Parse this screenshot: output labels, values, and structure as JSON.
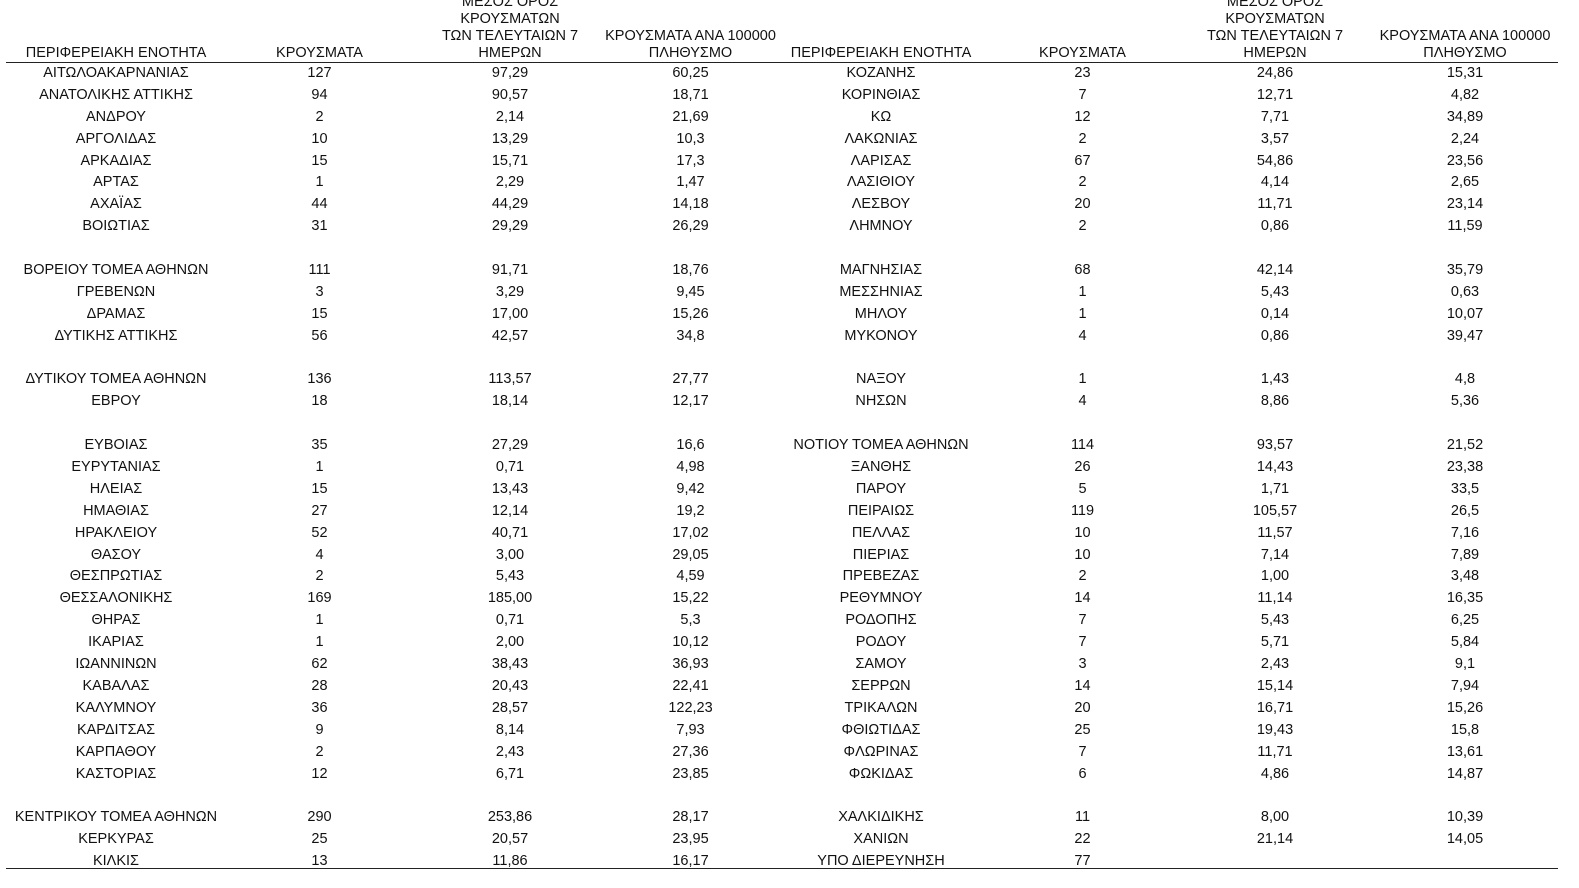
{
  "headers": [
    [
      "ΠΕΡΙΦΕΡΕΙΑΚΗ ΕΝΟΤΗΤΑ"
    ],
    [
      "ΚΡΟΥΣΜΑΤΑ"
    ],
    [
      "ΜΕΣΟΣ ΟΡΟΣ ΚΡΟΥΣΜΑΤΩΝ",
      "ΤΩΝ ΤΕΛΕΥΤΑΙΩΝ 7",
      "ΗΜΕΡΩΝ"
    ],
    [
      "ΚΡΟΥΣΜΑΤΑ ΑΝΑ 100000",
      "ΠΛΗΘΥΣΜΟ"
    ],
    [
      "ΠΕΡΙΦΕΡΕΙΑΚΗ ΕΝΟΤΗΤΑ"
    ],
    [
      "ΚΡΟΥΣΜΑΤΑ"
    ],
    [
      "ΜΕΣΟΣ ΟΡΟΣ ΚΡΟΥΣΜΑΤΩΝ",
      "ΤΩΝ ΤΕΛΕΥΤΑΙΩΝ 7",
      "ΗΜΕΡΩΝ"
    ],
    [
      "ΚΡΟΥΣΜΑΤΑ ΑΝΑ 100000",
      "ΠΛΗΘΥΣΜΟ"
    ]
  ],
  "rows": [
    [
      "ΑΙΤΩΛΟΑΚΑΡΝΑΝΙΑΣ",
      "127",
      "97,29",
      "60,25",
      "ΚΟΖΑΝΗΣ",
      "23",
      "24,86",
      "15,31"
    ],
    [
      "ΑΝΑΤΟΛΙΚΗΣ ΑΤΤΙΚΗΣ",
      "94",
      "90,57",
      "18,71",
      "ΚΟΡΙΝΘΙΑΣ",
      "7",
      "12,71",
      "4,82"
    ],
    [
      "ΑΝΔΡΟΥ",
      "2",
      "2,14",
      "21,69",
      "ΚΩ",
      "12",
      "7,71",
      "34,89"
    ],
    [
      "ΑΡΓΟΛΙΔΑΣ",
      "10",
      "13,29",
      "10,3",
      "ΛΑΚΩΝΙΑΣ",
      "2",
      "3,57",
      "2,24"
    ],
    [
      "ΑΡΚΑΔΙΑΣ",
      "15",
      "15,71",
      "17,3",
      "ΛΑΡΙΣΑΣ",
      "67",
      "54,86",
      "23,56"
    ],
    [
      "ΑΡΤΑΣ",
      "1",
      "2,29",
      "1,47",
      "ΛΑΣΙΘΙΟΥ",
      "2",
      "4,14",
      "2,65"
    ],
    [
      "ΑΧΑΪΑΣ",
      "44",
      "44,29",
      "14,18",
      "ΛΕΣΒΟΥ",
      "20",
      "11,71",
      "23,14"
    ],
    [
      "ΒΟΙΩΤΙΑΣ",
      "31",
      "29,29",
      "26,29",
      "ΛΗΜΝΟΥ",
      "2",
      "0,86",
      "11,59"
    ],
    [],
    [
      "ΒΟΡΕΙΟΥ ΤΟΜΕΑ ΑΘΗΝΩΝ",
      "111",
      "91,71",
      "18,76",
      "ΜΑΓΝΗΣΙΑΣ",
      "68",
      "42,14",
      "35,79"
    ],
    [
      "ΓΡΕΒΕΝΩΝ",
      "3",
      "3,29",
      "9,45",
      "ΜΕΣΣΗΝΙΑΣ",
      "1",
      "5,43",
      "0,63"
    ],
    [
      "ΔΡΑΜΑΣ",
      "15",
      "17,00",
      "15,26",
      "ΜΗΛΟΥ",
      "1",
      "0,14",
      "10,07"
    ],
    [
      "ΔΥΤΙΚΗΣ ΑΤΤΙΚΗΣ",
      "56",
      "42,57",
      "34,8",
      "ΜΥΚΟΝΟΥ",
      "4",
      "0,86",
      "39,47"
    ],
    [],
    [
      "ΔΥΤΙΚΟΥ ΤΟΜΕΑ ΑΘΗΝΩΝ",
      "136",
      "113,57",
      "27,77",
      "ΝΑΞΟΥ",
      "1",
      "1,43",
      "4,8"
    ],
    [
      "ΕΒΡΟΥ",
      "18",
      "18,14",
      "12,17",
      "ΝΗΣΩΝ",
      "4",
      "8,86",
      "5,36"
    ],
    [],
    [
      "ΕΥΒΟΙΑΣ",
      "35",
      "27,29",
      "16,6",
      "ΝΟΤΙΟΥ ΤΟΜΕΑ ΑΘΗΝΩΝ",
      "114",
      "93,57",
      "21,52"
    ],
    [
      "ΕΥΡΥΤΑΝΙΑΣ",
      "1",
      "0,71",
      "4,98",
      "ΞΑΝΘΗΣ",
      "26",
      "14,43",
      "23,38"
    ],
    [
      "ΗΛΕΙΑΣ",
      "15",
      "13,43",
      "9,42",
      "ΠΑΡΟΥ",
      "5",
      "1,71",
      "33,5"
    ],
    [
      "ΗΜΑΘΙΑΣ",
      "27",
      "12,14",
      "19,2",
      "ΠΕΙΡΑΙΩΣ",
      "119",
      "105,57",
      "26,5"
    ],
    [
      "ΗΡΑΚΛΕΙΟΥ",
      "52",
      "40,71",
      "17,02",
      "ΠΕΛΛΑΣ",
      "10",
      "11,57",
      "7,16"
    ],
    [
      "ΘΑΣΟΥ",
      "4",
      "3,00",
      "29,05",
      "ΠΙΕΡΙΑΣ",
      "10",
      "7,14",
      "7,89"
    ],
    [
      "ΘΕΣΠΡΩΤΙΑΣ",
      "2",
      "5,43",
      "4,59",
      "ΠΡΕΒΕΖΑΣ",
      "2",
      "1,00",
      "3,48"
    ],
    [
      "ΘΕΣΣΑΛΟΝΙΚΗΣ",
      "169",
      "185,00",
      "15,22",
      "ΡΕΘΥΜΝΟΥ",
      "14",
      "11,14",
      "16,35"
    ],
    [
      "ΘΗΡΑΣ",
      "1",
      "0,71",
      "5,3",
      "ΡΟΔΟΠΗΣ",
      "7",
      "5,43",
      "6,25"
    ],
    [
      "ΙΚΑΡΙΑΣ",
      "1",
      "2,00",
      "10,12",
      "ΡΟΔΟΥ",
      "7",
      "5,71",
      "5,84"
    ],
    [
      "ΙΩΑΝΝΙΝΩΝ",
      "62",
      "38,43",
      "36,93",
      "ΣΑΜΟΥ",
      "3",
      "2,43",
      "9,1"
    ],
    [
      "ΚΑΒΑΛΑΣ",
      "28",
      "20,43",
      "22,41",
      "ΣΕΡΡΩΝ",
      "14",
      "15,14",
      "7,94"
    ],
    [
      "ΚΑΛΥΜΝΟΥ",
      "36",
      "28,57",
      "122,23",
      "ΤΡΙΚΑΛΩΝ",
      "20",
      "16,71",
      "15,26"
    ],
    [
      "ΚΑΡΔΙΤΣΑΣ",
      "9",
      "8,14",
      "7,93",
      "ΦΘΙΩΤΙΔΑΣ",
      "25",
      "19,43",
      "15,8"
    ],
    [
      "ΚΑΡΠΑΘΟΥ",
      "2",
      "2,43",
      "27,36",
      "ΦΛΩΡΙΝΑΣ",
      "7",
      "11,71",
      "13,61"
    ],
    [
      "ΚΑΣΤΟΡΙΑΣ",
      "12",
      "6,71",
      "23,85",
      "ΦΩΚΙΔΑΣ",
      "6",
      "4,86",
      "14,87"
    ],
    [],
    [
      "ΚΕΝΤΡΙΚΟΥ ΤΟΜΕΑ ΑΘΗΝΩΝ",
      "290",
      "253,86",
      "28,17",
      "ΧΑΛΚΙΔΙΚΗΣ",
      "11",
      "8,00",
      "10,39"
    ],
    [
      "ΚΕΡΚΥΡΑΣ",
      "25",
      "20,57",
      "23,95",
      "ΧΑΝΙΩΝ",
      "22",
      "21,14",
      "14,05"
    ],
    [
      "ΚΙΛΚΙΣ",
      "13",
      "11,86",
      "16,17",
      "ΥΠΟ ΔΙΕΡΕΥΝΗΣΗ",
      "77",
      "",
      ""
    ]
  ]
}
